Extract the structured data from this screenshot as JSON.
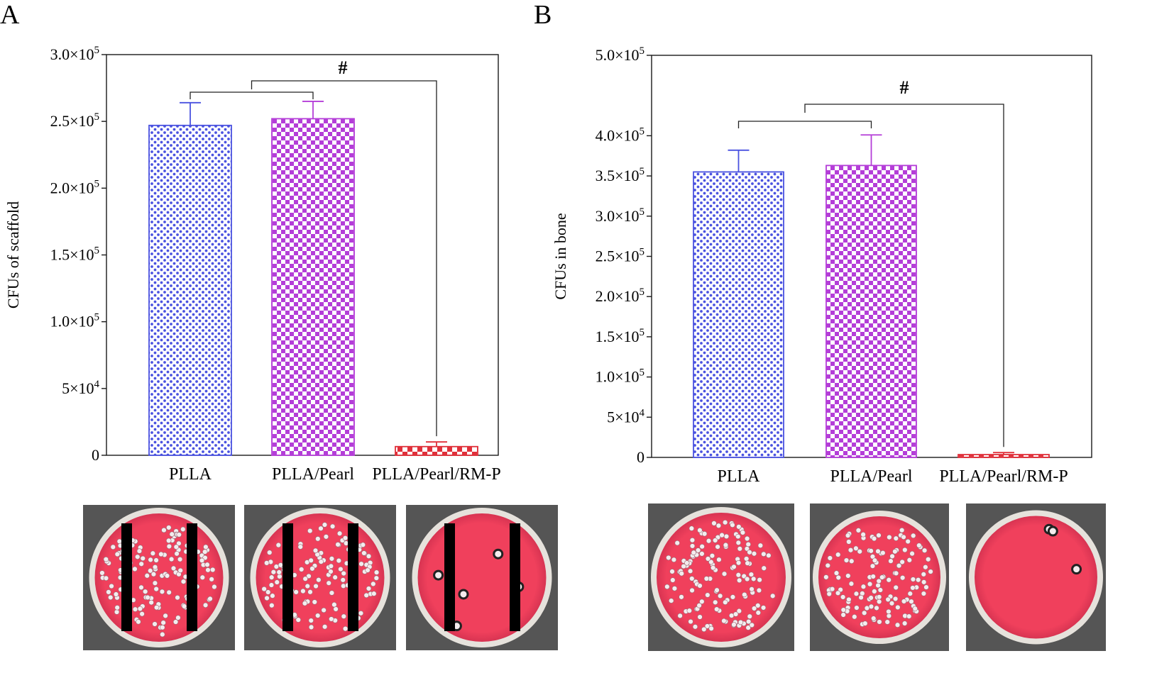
{
  "colors": {
    "series_0": "#4a52e0",
    "series_1": "#b43ed8",
    "series_2": "#e0303a",
    "axis": "#1a1a1a",
    "bracket": "#222222",
    "plate_medium": "#f0405c",
    "plate_rim": "#e6e2dc",
    "plate_background": "#555555",
    "colony": "#f4ecee",
    "mask": "#000000"
  },
  "chart_data": [
    {
      "type": "bar",
      "panel_label": "A",
      "categories": [
        "PLLA",
        "PLLA/Pearl",
        "PLLA/Pearl/RM-P"
      ],
      "values": [
        247000,
        252000,
        6500
      ],
      "errors": [
        17000,
        13000,
        3500
      ],
      "ylabel": "CFUs of scaffold",
      "ylim": [
        0,
        300000
      ],
      "yticks": [
        0,
        50000,
        100000,
        150000,
        200000,
        250000,
        300000
      ],
      "ytick_labels": [
        {
          "mant": "0",
          "exp": ""
        },
        {
          "mant": "5×10",
          "exp": "4"
        },
        {
          "mant": "1.0×10",
          "exp": "5"
        },
        {
          "mant": "1.5×10",
          "exp": "5"
        },
        {
          "mant": "2.0×10",
          "exp": "5"
        },
        {
          "mant": "2.5×10",
          "exp": "5"
        },
        {
          "mant": "3.0×10",
          "exp": "5"
        }
      ],
      "significance": {
        "symbol": "#",
        "from": [
          0,
          1
        ],
        "to": 2
      },
      "plates": [
        {
          "colonies": 150,
          "masked": true
        },
        {
          "colonies": 130,
          "masked": true
        },
        {
          "colonies": 5,
          "masked": true
        }
      ]
    },
    {
      "type": "bar",
      "panel_label": "B",
      "categories": [
        "PLLA",
        "PLLA/Pearl",
        "PLLA/Pearl/RM-P"
      ],
      "values": [
        355000,
        363000,
        3500
      ],
      "errors": [
        27000,
        38000,
        2500
      ],
      "ylabel": "CFUs in bone",
      "ylim": [
        0,
        500000
      ],
      "yticks": [
        0,
        50000,
        100000,
        150000,
        200000,
        250000,
        300000,
        350000,
        400000,
        500000
      ],
      "ytick_labels": [
        {
          "mant": "0",
          "exp": ""
        },
        {
          "mant": "5×10",
          "exp": "4"
        },
        {
          "mant": "1.0×10",
          "exp": "5"
        },
        {
          "mant": "1.5×10",
          "exp": "5"
        },
        {
          "mant": "2.0×10",
          "exp": "5"
        },
        {
          "mant": "2.5×10",
          "exp": "5"
        },
        {
          "mant": "3.0×10",
          "exp": "5"
        },
        {
          "mant": "3.5×10",
          "exp": "5"
        },
        {
          "mant": "4.0×10",
          "exp": "5"
        },
        {
          "mant": "5.0×10",
          "exp": "5"
        }
      ],
      "significance": {
        "symbol": "#",
        "from": [
          0,
          1
        ],
        "to": 2
      },
      "plates": [
        {
          "colonies": 140,
          "masked": false
        },
        {
          "colonies": 130,
          "masked": false
        },
        {
          "colonies": 3,
          "masked": false
        }
      ]
    }
  ]
}
